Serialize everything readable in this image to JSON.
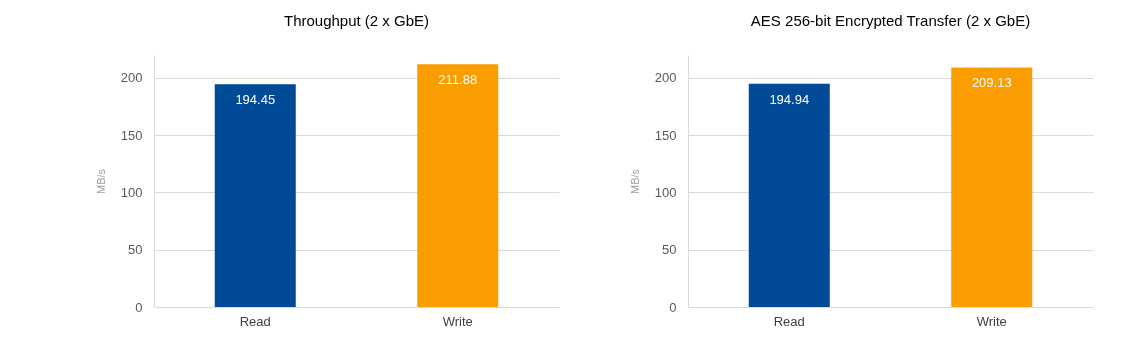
{
  "chart_data": [
    {
      "type": "bar",
      "title": "Throughput (2 x GbE)",
      "ylabel": "MB/s",
      "categories": [
        "Read",
        "Write"
      ],
      "values": [
        194.45,
        211.88
      ],
      "colors": [
        "#004a97",
        "#f99d00"
      ],
      "ylim": [
        0,
        220
      ],
      "yticks": [
        0,
        50,
        100,
        150,
        200
      ],
      "grid": "y",
      "data_labels": true
    },
    {
      "type": "bar",
      "title": "AES 256-bit Encrypted Transfer (2 x GbE)",
      "ylabel": "MB/s",
      "categories": [
        "Read",
        "Write"
      ],
      "values": [
        194.94,
        209.13
      ],
      "colors": [
        "#004a97",
        "#f99d00"
      ],
      "ylim": [
        0,
        220
      ],
      "yticks": [
        0,
        50,
        100,
        150,
        200
      ],
      "grid": "y",
      "data_labels": true
    }
  ]
}
